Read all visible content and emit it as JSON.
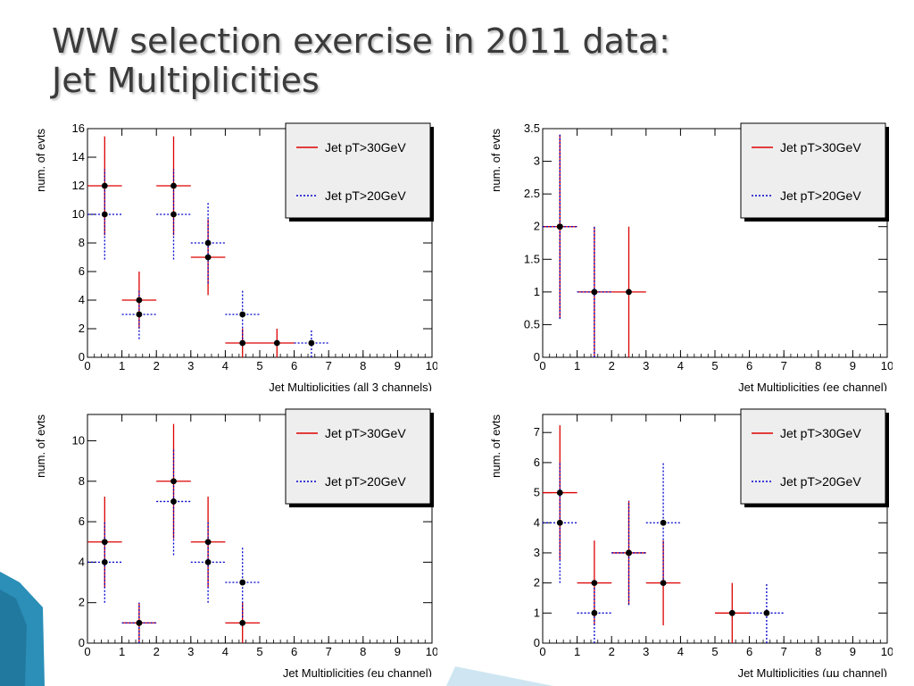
{
  "slide": {
    "title_line1": "WW selection exercise in 2011 data:",
    "title_line2": "Jet Multiplicities"
  },
  "colors": {
    "series_30": "#dd0000",
    "series_20": "#0000cc",
    "marker": "#000000",
    "axis": "#000000",
    "accent_shape": "#2b8fb8"
  },
  "chart_data": [
    {
      "type": "scatter",
      "xlabel": "Jet Multiplicities (all 3 channels)",
      "ylabel": "num. of evts",
      "xlim": [
        0,
        10
      ],
      "ylim": [
        0,
        16
      ],
      "xticks": [
        0,
        1,
        2,
        3,
        4,
        5,
        6,
        7,
        8,
        9,
        10
      ],
      "yticks": [
        0,
        2,
        4,
        6,
        8,
        10,
        12,
        14,
        16
      ],
      "legend_position": "top-right",
      "series": [
        {
          "name": "Jet pT>30GeV",
          "x": [
            0.5,
            1.5,
            2.5,
            3.5,
            4.5,
            5.5
          ],
          "y": [
            12,
            4,
            12,
            7,
            1,
            1
          ],
          "yerr": [
            3.46,
            2,
            3.46,
            2.65,
            1,
            1
          ]
        },
        {
          "name": "Jet pT>20GeV",
          "x": [
            0.5,
            1.5,
            2.5,
            3.5,
            4.5,
            6.5
          ],
          "y": [
            10,
            3,
            10,
            8,
            3,
            1
          ],
          "yerr": [
            3.16,
            1.73,
            3.16,
            2.83,
            1.73,
            1
          ]
        }
      ]
    },
    {
      "type": "scatter",
      "xlabel": "Jet Multiplicities (ee channel)",
      "ylabel": "num. of evts",
      "xlim": [
        0,
        10
      ],
      "ylim": [
        0,
        3.5
      ],
      "xticks": [
        0,
        1,
        2,
        3,
        4,
        5,
        6,
        7,
        8,
        9,
        10
      ],
      "yticks": [
        0,
        0.5,
        1,
        1.5,
        2,
        2.5,
        3,
        3.5
      ],
      "legend_position": "top-right",
      "series": [
        {
          "name": "Jet pT>30GeV",
          "x": [
            0.5,
            1.5,
            2.5
          ],
          "y": [
            2,
            1,
            1
          ],
          "yerr": [
            1.41,
            1,
            1
          ]
        },
        {
          "name": "Jet pT>20GeV",
          "x": [
            0.5,
            1.5
          ],
          "y": [
            2,
            1
          ],
          "yerr": [
            1.41,
            1
          ]
        }
      ]
    },
    {
      "type": "scatter",
      "xlabel": "Jet Multiplicities (eμ channel)",
      "ylabel": "num. of evts",
      "xlim": [
        0,
        10
      ],
      "ylim": [
        0,
        11.3
      ],
      "xticks": [
        0,
        1,
        2,
        3,
        4,
        5,
        6,
        7,
        8,
        9,
        10
      ],
      "yticks": [
        0,
        2,
        4,
        6,
        8,
        10
      ],
      "legend_position": "top-right",
      "series": [
        {
          "name": "Jet pT>30GeV",
          "x": [
            0.5,
            1.5,
            2.5,
            3.5,
            4.5
          ],
          "y": [
            5,
            1,
            8,
            5,
            1
          ],
          "yerr": [
            2.24,
            1,
            2.83,
            2.24,
            1
          ]
        },
        {
          "name": "Jet pT>20GeV",
          "x": [
            0.5,
            1.5,
            2.5,
            3.5,
            4.5
          ],
          "y": [
            4,
            1,
            7,
            4,
            3
          ],
          "yerr": [
            2,
            1,
            2.65,
            2,
            1.73
          ]
        }
      ]
    },
    {
      "type": "scatter",
      "xlabel": "Jet Multiplicities (μμ channel)",
      "ylabel": "num. of evts",
      "xlim": [
        0,
        10
      ],
      "ylim": [
        0,
        7.6
      ],
      "xticks": [
        0,
        1,
        2,
        3,
        4,
        5,
        6,
        7,
        8,
        9,
        10
      ],
      "yticks": [
        0,
        1,
        2,
        3,
        4,
        5,
        6,
        7
      ],
      "legend_position": "top-right",
      "series": [
        {
          "name": "Jet pT>30GeV",
          "x": [
            0.5,
            1.5,
            2.5,
            3.5,
            5.5
          ],
          "y": [
            5,
            2,
            3,
            2,
            1
          ],
          "yerr": [
            2.24,
            1.41,
            1.73,
            1.41,
            1
          ]
        },
        {
          "name": "Jet pT>20GeV",
          "x": [
            0.5,
            1.5,
            2.5,
            3.5,
            6.5
          ],
          "y": [
            4,
            1,
            3,
            4,
            1
          ],
          "yerr": [
            2,
            1,
            1.73,
            2,
            1
          ]
        }
      ]
    }
  ]
}
